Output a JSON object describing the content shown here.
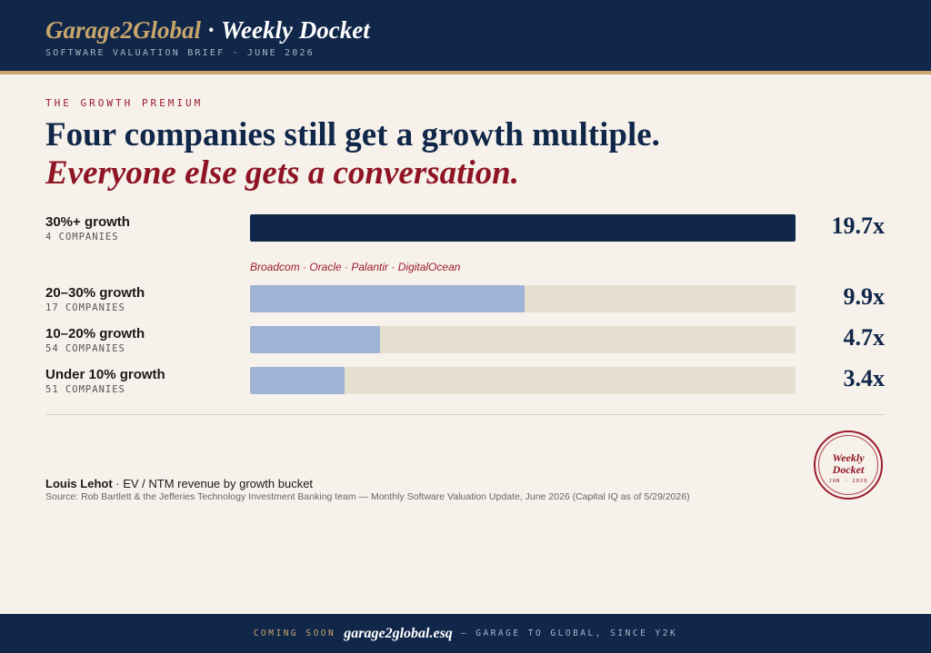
{
  "header": {
    "brand": "Garage2Global",
    "separator": "·",
    "docket": "Weekly Docket",
    "subtitle": "SOFTWARE VALUATION BRIEF · JUNE 2026"
  },
  "headline": {
    "kicker": "THE GROWTH PREMIUM",
    "line1": "Four companies still get a growth multiple.",
    "line2": "Everyone else gets a conversation."
  },
  "chart_data": {
    "type": "bar",
    "orientation": "horizontal",
    "categories": [
      "30%+ growth",
      "20–30% growth",
      "10–20% growth",
      "Under 10% growth"
    ],
    "counts": [
      "4 COMPANIES",
      "17 COMPANIES",
      "54 COMPANIES",
      "51 COMPANIES"
    ],
    "values": [
      19.7,
      9.9,
      4.7,
      3.4
    ],
    "value_labels": [
      "19.7x",
      "9.9x",
      "4.7x",
      "3.4x"
    ],
    "xlim": [
      0,
      19.7
    ],
    "highlight_annotation": "Broadcom · Oracle · Palantir · DigitalOcean",
    "colors": {
      "highlight": "#10274a",
      "regular": "#9fb3d4",
      "track": "#e6dfcf"
    }
  },
  "footer_note": {
    "author": "Louis Lehot",
    "description": " · EV / NTM revenue by growth bucket",
    "source": "Source: Rob Bartlett & the Jefferies Technology Investment Banking team — Monthly Software Valuation Update, June 2026 (Capital IQ as of 5/29/2026)"
  },
  "seal": {
    "line1": "Weekly",
    "line2": "Docket",
    "line3": "JUN · 2026"
  },
  "footer": {
    "coming_soon": "COMING SOON",
    "site": "garage2global.esq",
    "tagline": "— GARAGE TO GLOBAL, SINCE Y2K"
  },
  "colors": {
    "navy": "#10274a",
    "gold": "#c8a56b",
    "crimson": "#9b1c2c",
    "background": "#f6f1ea"
  }
}
